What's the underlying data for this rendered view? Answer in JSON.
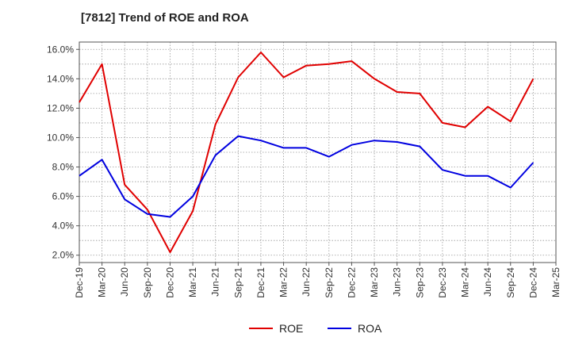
{
  "chart_data": {
    "type": "line",
    "title": "[7812]  Trend of ROE and ROA",
    "xlabel": "",
    "ylabel": "",
    "categories": [
      "Dec-19",
      "Mar-20",
      "Jun-20",
      "Sep-20",
      "Dec-20",
      "Mar-21",
      "Jun-21",
      "Sep-21",
      "Dec-21",
      "Mar-22",
      "Jun-22",
      "Sep-22",
      "Dec-22",
      "Mar-23",
      "Jun-23",
      "Sep-23",
      "Dec-23",
      "Mar-24",
      "Jun-24",
      "Sep-24",
      "Dec-24",
      "Mar-25"
    ],
    "y_ticks": [
      "2.0%",
      "4.0%",
      "6.0%",
      "8.0%",
      "10.0%",
      "12.0%",
      "14.0%",
      "16.0%"
    ],
    "ylim": [
      1.5,
      16.5
    ],
    "grid": true,
    "legend_position": "bottom-center",
    "series": [
      {
        "name": "ROE",
        "color": "#e00000",
        "values": [
          12.4,
          15.0,
          6.8,
          5.1,
          2.2,
          5.0,
          10.9,
          14.1,
          15.8,
          14.1,
          14.9,
          15.0,
          15.2,
          14.0,
          13.1,
          13.0,
          11.0,
          10.7,
          12.1,
          11.1,
          14.0,
          null
        ]
      },
      {
        "name": "ROA",
        "color": "#0000e0",
        "values": [
          7.4,
          8.5,
          5.8,
          4.8,
          4.6,
          6.0,
          8.8,
          10.1,
          9.8,
          9.3,
          9.3,
          8.7,
          9.5,
          9.8,
          9.7,
          9.4,
          7.8,
          7.4,
          7.4,
          6.6,
          8.3,
          null
        ]
      }
    ]
  }
}
